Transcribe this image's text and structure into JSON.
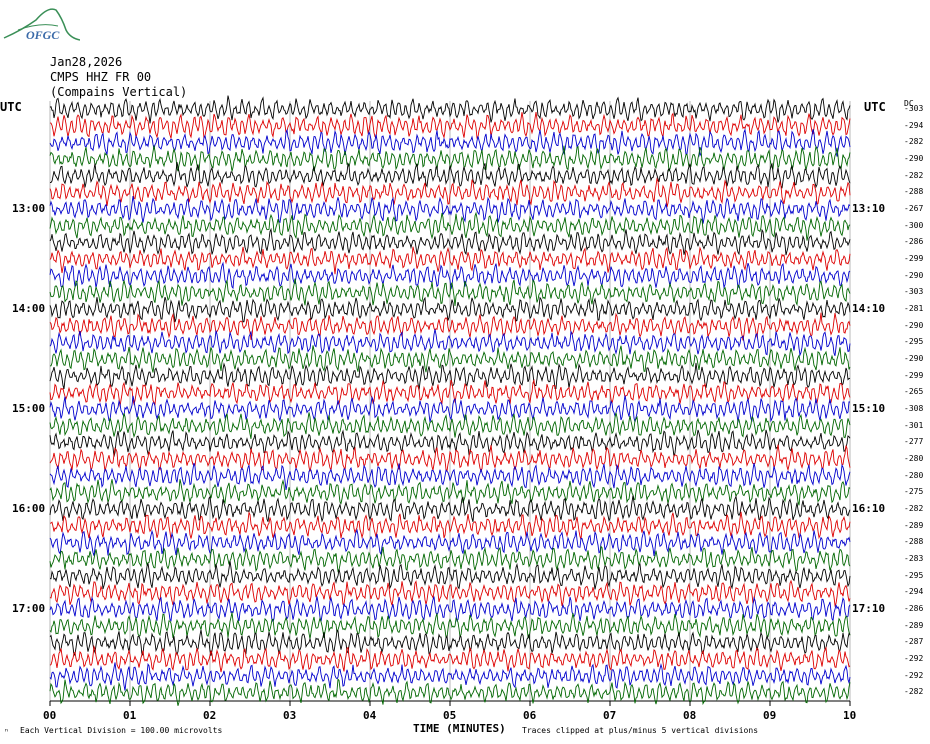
{
  "logo": {
    "text": "OFGC",
    "color": "#3a8f57"
  },
  "header": {
    "date": "Jan28,2026",
    "station": "CMPS HHZ FR 00",
    "name": "(Compains Vertical)"
  },
  "left_axis_label": "UTC",
  "right_axis_label": "UTC",
  "dc_label": "DC",
  "chart_data": {
    "type": "line",
    "xlabel": "TIME (MINUTES)",
    "x_ticks": [
      "00",
      "01",
      "02",
      "03",
      "04",
      "05",
      "06",
      "07",
      "08",
      "09",
      "10"
    ],
    "xlim": [
      0,
      10
    ],
    "left_hour_labels": [
      "13:00",
      "14:00",
      "15:00",
      "16:00",
      "17:00"
    ],
    "right_hour_labels": [
      "13:10",
      "14:10",
      "15:10",
      "16:10",
      "17:10"
    ],
    "trace_colors": [
      "#000000",
      "#dd0000",
      "#0000cc",
      "#006600"
    ],
    "dc_offsets": [
      "-303",
      "-294",
      "-282",
      "-290",
      "-282",
      "-288",
      "-267",
      "-300",
      "-286",
      "-299",
      "-290",
      "-303",
      "-281",
      "-290",
      "-295",
      "-290",
      "-299",
      "-265",
      "-308",
      "-301",
      "-277",
      "-280",
      "-280",
      "-275",
      "-282",
      "-289",
      "-288",
      "-283",
      "-295",
      "-294",
      "-286",
      "-289",
      "-287",
      "-292",
      "-292",
      "-282"
    ],
    "grid": true
  },
  "footer": {
    "scale": "Each Vertical Division =  100.00 microvolts",
    "clip": "Traces clipped at plus/minus 5 vertical divisions"
  }
}
